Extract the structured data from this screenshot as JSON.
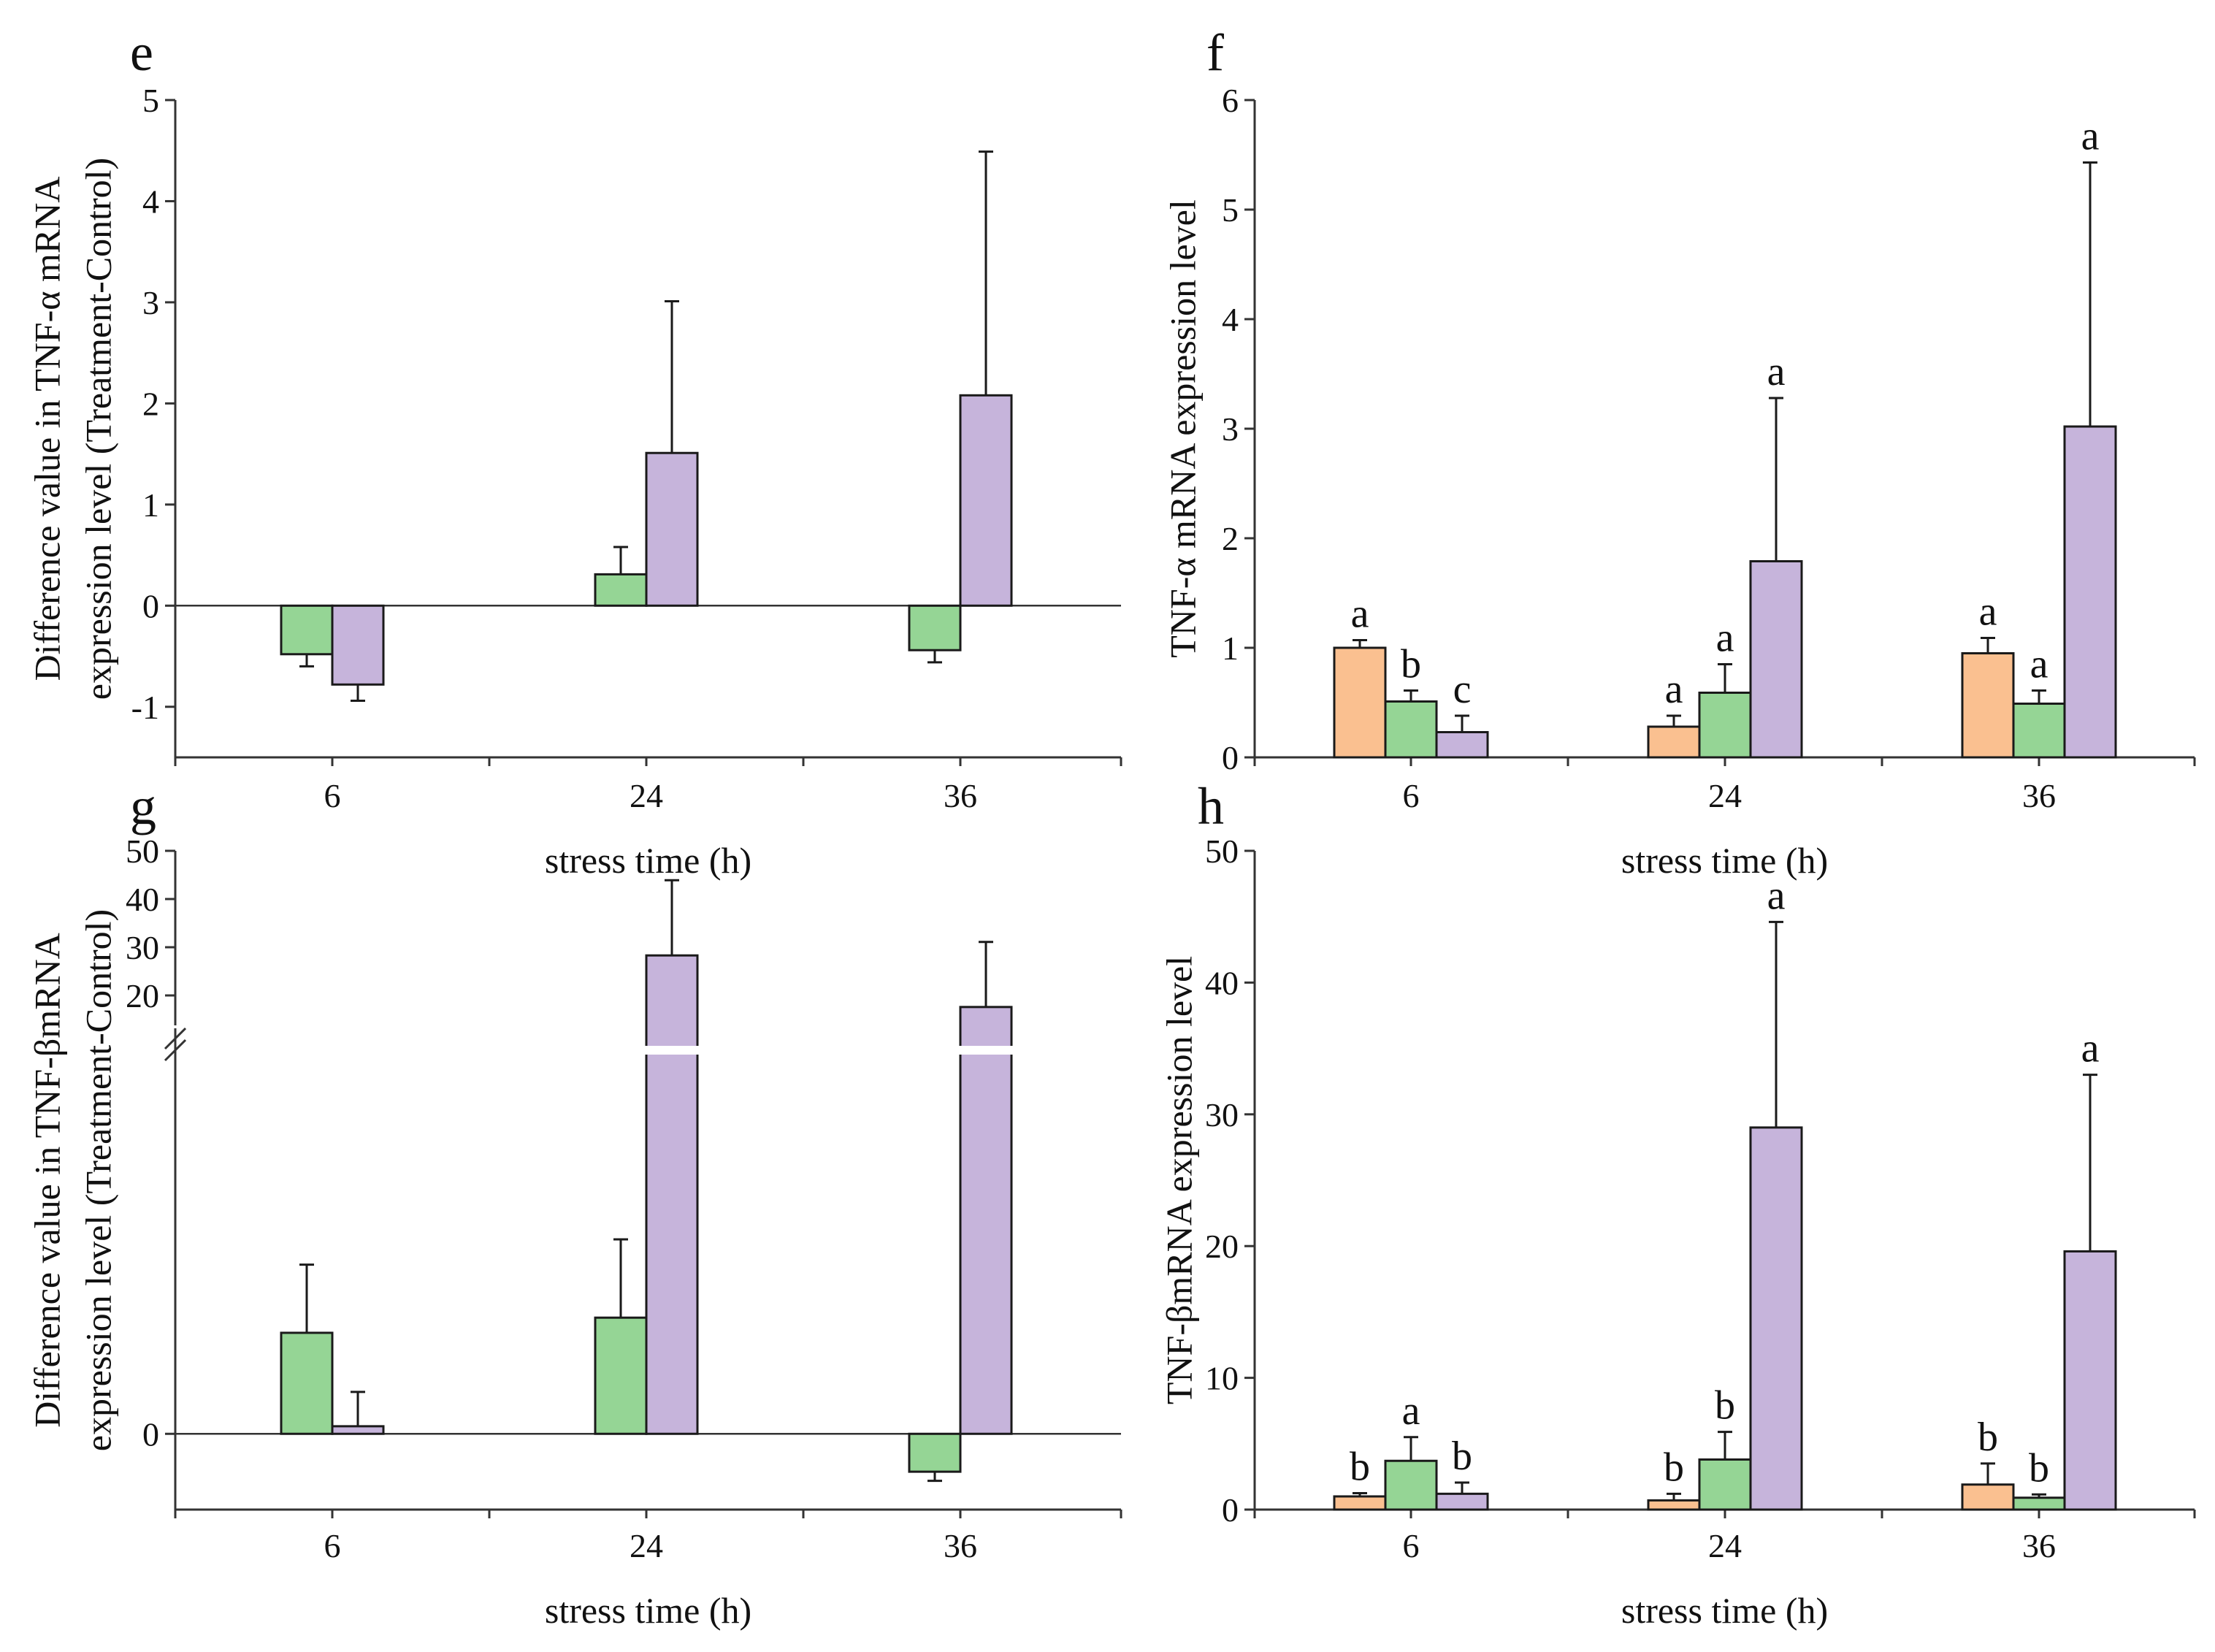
{
  "colors": {
    "orange": "#FAC090",
    "green": "#95D595",
    "purple": "#C6B4DB",
    "axis": "#333333",
    "bar_edge": "#1a1a1a"
  },
  "chart_data": [
    {
      "panel": "e",
      "type": "bar",
      "categories": [
        "6",
        "24",
        "36"
      ],
      "xlabel": "stress time (h)",
      "ylabel_lines": [
        "Difference value in TNF-α mRNA",
        "expression level (Treatment-Control)"
      ],
      "ylim": [
        -1.5,
        5
      ],
      "yticks": [
        -1,
        0,
        1,
        2,
        3,
        4,
        5
      ],
      "ytick_labels": [
        "-1",
        "0",
        "1",
        "2",
        "3",
        "4",
        "5"
      ],
      "series": [
        {
          "name": "green",
          "color": "green",
          "values": [
            -0.48,
            0.31,
            -0.44
          ],
          "errors": [
            0.12,
            0.27,
            0.12
          ]
        },
        {
          "name": "purple",
          "color": "purple",
          "values": [
            -0.78,
            1.51,
            2.08
          ],
          "errors": [
            0.16,
            1.5,
            2.41
          ]
        }
      ],
      "letters": []
    },
    {
      "panel": "f",
      "type": "bar",
      "categories": [
        "6",
        "24",
        "36"
      ],
      "xlabel": "stress time (h)",
      "ylabel_lines": [
        "TNF-α mRNA expression level"
      ],
      "ylim": [
        0,
        6
      ],
      "yticks": [
        0,
        1,
        2,
        3,
        4,
        5,
        6
      ],
      "ytick_labels": [
        "0",
        "1",
        "2",
        "3",
        "4",
        "5",
        "6"
      ],
      "series": [
        {
          "name": "orange",
          "color": "orange",
          "values": [
            1.0,
            0.28,
            0.95
          ],
          "errors": [
            0.07,
            0.1,
            0.14
          ]
        },
        {
          "name": "green",
          "color": "green",
          "values": [
            0.51,
            0.59,
            0.49
          ],
          "errors": [
            0.1,
            0.26,
            0.12
          ]
        },
        {
          "name": "purple",
          "color": "purple",
          "values": [
            0.23,
            1.79,
            3.02
          ],
          "errors": [
            0.15,
            1.49,
            2.41
          ]
        }
      ],
      "letters": [
        [
          "a",
          "b",
          "c"
        ],
        [
          "a",
          "a",
          "a"
        ],
        [
          "a",
          "a",
          "a"
        ]
      ]
    },
    {
      "panel": "g",
      "type": "bar",
      "broken_axis": true,
      "categories": [
        "6",
        "24",
        "36"
      ],
      "xlabel": "stress time (h)",
      "ylabel_lines": [
        "Difference value in TNF-βmRNA",
        "expression level (Treatment-Control)"
      ],
      "lower_range": [
        -1.5,
        8
      ],
      "upper_range": [
        15,
        50
      ],
      "lower_ticks": [
        0
      ],
      "lower_tick_labels": [
        "0"
      ],
      "upper_ticks": [
        20,
        30,
        40,
        50
      ],
      "upper_tick_labels": [
        "20",
        "30",
        "40",
        "50"
      ],
      "series": [
        {
          "name": "green",
          "color": "green",
          "values": [
            2.0,
            2.3,
            -0.75
          ],
          "errors": [
            1.35,
            1.55,
            0.18
          ]
        },
        {
          "name": "purple",
          "color": "purple",
          "values": [
            0.15,
            28.3,
            17.6
          ],
          "errors": [
            0.68,
            15.6,
            13.5
          ]
        }
      ],
      "letters": []
    },
    {
      "panel": "h",
      "type": "bar",
      "categories": [
        "6",
        "24",
        "36"
      ],
      "xlabel": "stress time (h)",
      "ylabel_lines": [
        "TNF-βmRNA expression level"
      ],
      "ylim": [
        0,
        50
      ],
      "yticks": [
        0,
        10,
        20,
        30,
        40,
        50
      ],
      "ytick_labels": [
        "0",
        "10",
        "20",
        "30",
        "40",
        "50"
      ],
      "series": [
        {
          "name": "orange",
          "color": "orange",
          "values": [
            1.0,
            0.7,
            1.9
          ],
          "errors": [
            0.25,
            0.5,
            1.6
          ]
        },
        {
          "name": "green",
          "color": "green",
          "values": [
            3.7,
            3.8,
            0.9
          ],
          "errors": [
            1.8,
            2.1,
            0.25
          ]
        },
        {
          "name": "purple",
          "color": "purple",
          "values": [
            1.2,
            29.0,
            19.6
          ],
          "errors": [
            0.85,
            15.6,
            13.4
          ]
        }
      ],
      "letters": [
        [
          "b",
          "a",
          "b"
        ],
        [
          "b",
          "b",
          "a"
        ],
        [
          "b",
          "b",
          "a"
        ]
      ]
    }
  ]
}
